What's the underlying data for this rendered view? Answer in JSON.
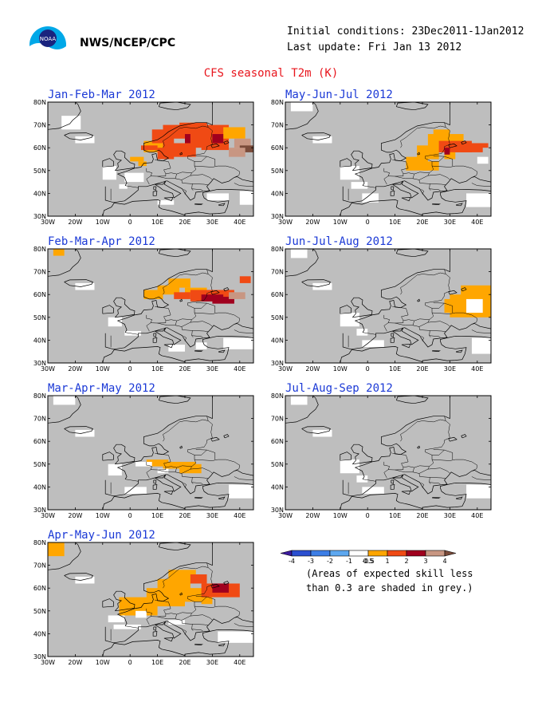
{
  "header": {
    "org": "NWS/NCEP/CPC",
    "initial_conditions": "Initial conditions: 23Dec2011-1Jan2012",
    "last_update": "Last update: Fri Jan 13 2012",
    "title": "CFS seasonal T2m (K)"
  },
  "logo": {
    "text": "NOAA"
  },
  "axes": {
    "lon_labels": [
      "30W",
      "20W",
      "10W",
      "0",
      "10E",
      "20E",
      "30E",
      "40E"
    ],
    "lat_labels": [
      "30N",
      "40N",
      "50N",
      "60N",
      "70N",
      "80N"
    ]
  },
  "colors": {
    "skill_grey": "#bebebe",
    "land_white": "#ffffff",
    "orange": "#ffa600",
    "red_orange": "#f04a14",
    "dark_red": "#a0001e",
    "tan": "#c89682",
    "brown": "#7a4b3a",
    "title_blue": "#1b39d6",
    "title_red": "#e8141c"
  },
  "panels": [
    {
      "id": "jfm",
      "title": "Jan-Feb-Mar 2012"
    },
    {
      "id": "mjj",
      "title": "May-Jun-Jul 2012"
    },
    {
      "id": "fma",
      "title": "Feb-Mar-Apr 2012"
    },
    {
      "id": "jja",
      "title": "Jun-Jul-Aug 2012"
    },
    {
      "id": "mam",
      "title": "Mar-Apr-May 2012"
    },
    {
      "id": "jas",
      "title": "Jul-Aug-Sep 2012"
    },
    {
      "id": "amj",
      "title": "Apr-May-Jun 2012"
    }
  ],
  "legend": {
    "labels": [
      "-4",
      "-3",
      "-2",
      "-1",
      "-0.5",
      "0.5",
      "1",
      "2",
      "3",
      "4"
    ],
    "colors": [
      "#3c1a9e",
      "#2b4fd0",
      "#3c7ee6",
      "#5da8f0",
      "#ffffff",
      "#ffa600",
      "#f04a14",
      "#a0001e",
      "#c89682",
      "#7a4b3a"
    ],
    "note_line1": "(Areas of expected skill less",
    "note_line2": "than 0.3 are shaded in grey.)"
  }
}
